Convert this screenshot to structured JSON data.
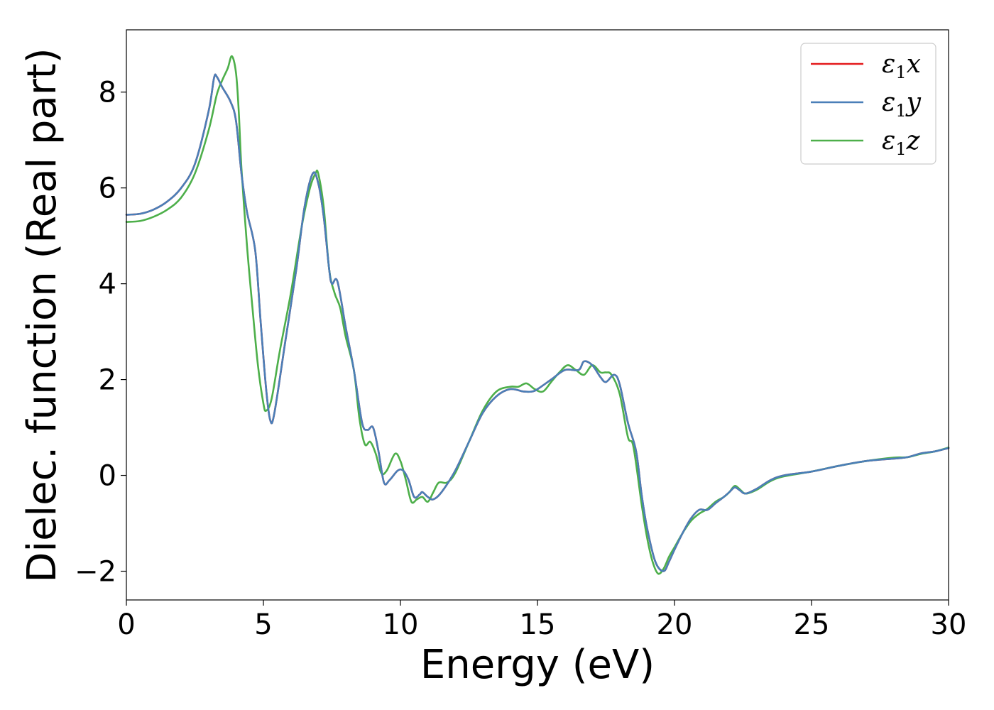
{
  "chart_data": {
    "type": "line",
    "xlabel": "Energy (eV)",
    "ylabel": "Dielec. function (Real part)",
    "xlim": [
      0,
      30
    ],
    "ylim": [
      -2.6,
      9.3
    ],
    "xticks": [
      0,
      5,
      10,
      15,
      20,
      25,
      30
    ],
    "xtick_labels": [
      "0",
      "5",
      "10",
      "15",
      "20",
      "25",
      "30"
    ],
    "yticks": [
      -2,
      0,
      2,
      4,
      6,
      8
    ],
    "ytick_labels": [
      "−2",
      "0",
      "2",
      "4",
      "6",
      "8"
    ],
    "grid": false,
    "legend_position": "top-right",
    "series": [
      {
        "name": "ε₁x",
        "legend_main": "ε",
        "legend_sub": "1",
        "legend_var": "x",
        "color": "#e41a1c",
        "points": [
          [
            0,
            5.44
          ],
          [
            0.5,
            5.46
          ],
          [
            1.0,
            5.55
          ],
          [
            1.5,
            5.72
          ],
          [
            2.0,
            6.0
          ],
          [
            2.5,
            6.5
          ],
          [
            3.0,
            7.6
          ],
          [
            3.2,
            8.3
          ],
          [
            3.3,
            8.32
          ],
          [
            3.5,
            8.1
          ],
          [
            3.8,
            7.8
          ],
          [
            4.0,
            7.4
          ],
          [
            4.2,
            6.3
          ],
          [
            4.4,
            5.5
          ],
          [
            4.7,
            4.7
          ],
          [
            4.9,
            3.2
          ],
          [
            5.1,
            1.8
          ],
          [
            5.25,
            1.15
          ],
          [
            5.4,
            1.3
          ],
          [
            5.8,
            2.8
          ],
          [
            6.2,
            4.3
          ],
          [
            6.5,
            5.6
          ],
          [
            6.8,
            6.3
          ],
          [
            7.0,
            6.1
          ],
          [
            7.2,
            5.4
          ],
          [
            7.4,
            4.3
          ],
          [
            7.5,
            4.0
          ],
          [
            7.7,
            4.05
          ],
          [
            8.0,
            3.1
          ],
          [
            8.3,
            2.2
          ],
          [
            8.6,
            1.1
          ],
          [
            8.8,
            0.95
          ],
          [
            9.0,
            1.0
          ],
          [
            9.2,
            0.5
          ],
          [
            9.4,
            -0.15
          ],
          [
            9.6,
            -0.1
          ],
          [
            9.9,
            0.1
          ],
          [
            10.1,
            0.1
          ],
          [
            10.3,
            -0.1
          ],
          [
            10.5,
            -0.45
          ],
          [
            10.7,
            -0.4
          ],
          [
            10.8,
            -0.35
          ],
          [
            11.0,
            -0.45
          ],
          [
            11.2,
            -0.5
          ],
          [
            11.5,
            -0.35
          ],
          [
            12.0,
            0.1
          ],
          [
            12.5,
            0.7
          ],
          [
            13.0,
            1.3
          ],
          [
            13.5,
            1.65
          ],
          [
            14.0,
            1.8
          ],
          [
            14.5,
            1.75
          ],
          [
            14.8,
            1.75
          ],
          [
            15.0,
            1.8
          ],
          [
            15.5,
            2.0
          ],
          [
            16.0,
            2.2
          ],
          [
            16.5,
            2.2
          ],
          [
            16.7,
            2.38
          ],
          [
            17.0,
            2.3
          ],
          [
            17.3,
            2.05
          ],
          [
            17.5,
            1.95
          ],
          [
            17.8,
            2.1
          ],
          [
            18.0,
            1.9
          ],
          [
            18.3,
            1.1
          ],
          [
            18.6,
            0.5
          ],
          [
            18.8,
            -0.4
          ],
          [
            19.0,
            -1.1
          ],
          [
            19.3,
            -1.8
          ],
          [
            19.6,
            -2.0
          ],
          [
            19.8,
            -1.8
          ],
          [
            20.0,
            -1.55
          ],
          [
            20.3,
            -1.2
          ],
          [
            20.6,
            -0.9
          ],
          [
            20.9,
            -0.72
          ],
          [
            21.2,
            -0.72
          ],
          [
            21.5,
            -0.58
          ],
          [
            21.8,
            -0.45
          ],
          [
            22.0,
            -0.35
          ],
          [
            22.2,
            -0.25
          ],
          [
            22.4,
            -0.32
          ],
          [
            22.6,
            -0.38
          ],
          [
            23.0,
            -0.28
          ],
          [
            23.5,
            -0.1
          ],
          [
            24.0,
            0.0
          ],
          [
            25.0,
            0.08
          ],
          [
            26.0,
            0.2
          ],
          [
            27.0,
            0.3
          ],
          [
            28.0,
            0.35
          ],
          [
            28.5,
            0.38
          ],
          [
            29.0,
            0.46
          ],
          [
            29.5,
            0.5
          ],
          [
            30.0,
            0.57
          ]
        ]
      },
      {
        "name": "ε₁y",
        "legend_main": "ε",
        "legend_sub": "1",
        "legend_var": "y",
        "color": "#4a7fb8",
        "points": [
          [
            0,
            5.44
          ],
          [
            0.5,
            5.46
          ],
          [
            1.0,
            5.55
          ],
          [
            1.5,
            5.72
          ],
          [
            2.0,
            6.0
          ],
          [
            2.5,
            6.5
          ],
          [
            3.0,
            7.6
          ],
          [
            3.2,
            8.3
          ],
          [
            3.3,
            8.32
          ],
          [
            3.5,
            8.1
          ],
          [
            3.8,
            7.8
          ],
          [
            4.0,
            7.4
          ],
          [
            4.2,
            6.3
          ],
          [
            4.4,
            5.5
          ],
          [
            4.7,
            4.7
          ],
          [
            4.9,
            3.2
          ],
          [
            5.1,
            1.8
          ],
          [
            5.25,
            1.15
          ],
          [
            5.4,
            1.3
          ],
          [
            5.8,
            2.8
          ],
          [
            6.2,
            4.3
          ],
          [
            6.5,
            5.6
          ],
          [
            6.8,
            6.3
          ],
          [
            7.0,
            6.1
          ],
          [
            7.2,
            5.4
          ],
          [
            7.4,
            4.3
          ],
          [
            7.5,
            4.0
          ],
          [
            7.7,
            4.05
          ],
          [
            8.0,
            3.1
          ],
          [
            8.3,
            2.2
          ],
          [
            8.6,
            1.1
          ],
          [
            8.8,
            0.95
          ],
          [
            9.0,
            1.0
          ],
          [
            9.2,
            0.5
          ],
          [
            9.4,
            -0.15
          ],
          [
            9.6,
            -0.1
          ],
          [
            9.9,
            0.1
          ],
          [
            10.1,
            0.1
          ],
          [
            10.3,
            -0.1
          ],
          [
            10.5,
            -0.45
          ],
          [
            10.7,
            -0.4
          ],
          [
            10.8,
            -0.35
          ],
          [
            11.0,
            -0.45
          ],
          [
            11.2,
            -0.5
          ],
          [
            11.5,
            -0.35
          ],
          [
            12.0,
            0.1
          ],
          [
            12.5,
            0.7
          ],
          [
            13.0,
            1.3
          ],
          [
            13.5,
            1.65
          ],
          [
            14.0,
            1.8
          ],
          [
            14.5,
            1.75
          ],
          [
            14.8,
            1.75
          ],
          [
            15.0,
            1.8
          ],
          [
            15.5,
            2.0
          ],
          [
            16.0,
            2.2
          ],
          [
            16.5,
            2.2
          ],
          [
            16.7,
            2.38
          ],
          [
            17.0,
            2.3
          ],
          [
            17.3,
            2.05
          ],
          [
            17.5,
            1.95
          ],
          [
            17.8,
            2.1
          ],
          [
            18.0,
            1.9
          ],
          [
            18.3,
            1.1
          ],
          [
            18.6,
            0.5
          ],
          [
            18.8,
            -0.4
          ],
          [
            19.0,
            -1.1
          ],
          [
            19.3,
            -1.8
          ],
          [
            19.6,
            -2.0
          ],
          [
            19.8,
            -1.8
          ],
          [
            20.0,
            -1.55
          ],
          [
            20.3,
            -1.2
          ],
          [
            20.6,
            -0.9
          ],
          [
            20.9,
            -0.72
          ],
          [
            21.2,
            -0.72
          ],
          [
            21.5,
            -0.58
          ],
          [
            21.8,
            -0.45
          ],
          [
            22.0,
            -0.35
          ],
          [
            22.2,
            -0.25
          ],
          [
            22.4,
            -0.32
          ],
          [
            22.6,
            -0.38
          ],
          [
            23.0,
            -0.28
          ],
          [
            23.5,
            -0.1
          ],
          [
            24.0,
            0.0
          ],
          [
            25.0,
            0.08
          ],
          [
            26.0,
            0.2
          ],
          [
            27.0,
            0.3
          ],
          [
            28.0,
            0.35
          ],
          [
            28.5,
            0.38
          ],
          [
            29.0,
            0.46
          ],
          [
            29.5,
            0.5
          ],
          [
            30.0,
            0.57
          ]
        ]
      },
      {
        "name": "ε₁z",
        "legend_main": "ε",
        "legend_sub": "1",
        "legend_var": "z",
        "color": "#4daf4a",
        "points": [
          [
            0,
            5.29
          ],
          [
            0.5,
            5.31
          ],
          [
            1.0,
            5.4
          ],
          [
            1.5,
            5.55
          ],
          [
            2.0,
            5.8
          ],
          [
            2.5,
            6.3
          ],
          [
            3.0,
            7.2
          ],
          [
            3.3,
            7.95
          ],
          [
            3.5,
            8.25
          ],
          [
            3.7,
            8.5
          ],
          [
            3.85,
            8.75
          ],
          [
            4.0,
            8.4
          ],
          [
            4.1,
            7.6
          ],
          [
            4.2,
            6.4
          ],
          [
            4.4,
            4.8
          ],
          [
            4.6,
            3.5
          ],
          [
            4.8,
            2.3
          ],
          [
            5.0,
            1.5
          ],
          [
            5.1,
            1.35
          ],
          [
            5.3,
            1.6
          ],
          [
            5.6,
            2.6
          ],
          [
            6.0,
            3.8
          ],
          [
            6.4,
            5.2
          ],
          [
            6.7,
            6.0
          ],
          [
            6.9,
            6.3
          ],
          [
            7.0,
            6.3
          ],
          [
            7.2,
            5.6
          ],
          [
            7.4,
            4.3
          ],
          [
            7.6,
            3.8
          ],
          [
            7.8,
            3.5
          ],
          [
            8.0,
            2.9
          ],
          [
            8.3,
            2.2
          ],
          [
            8.5,
            1.2
          ],
          [
            8.7,
            0.65
          ],
          [
            8.9,
            0.7
          ],
          [
            9.1,
            0.45
          ],
          [
            9.3,
            0.05
          ],
          [
            9.5,
            0.1
          ],
          [
            9.8,
            0.45
          ],
          [
            10.0,
            0.3
          ],
          [
            10.2,
            -0.1
          ],
          [
            10.4,
            -0.55
          ],
          [
            10.6,
            -0.5
          ],
          [
            10.8,
            -0.45
          ],
          [
            11.0,
            -0.55
          ],
          [
            11.2,
            -0.35
          ],
          [
            11.4,
            -0.15
          ],
          [
            11.7,
            -0.15
          ],
          [
            12.0,
            0.05
          ],
          [
            12.5,
            0.7
          ],
          [
            13.0,
            1.35
          ],
          [
            13.5,
            1.75
          ],
          [
            14.0,
            1.85
          ],
          [
            14.3,
            1.85
          ],
          [
            14.6,
            1.92
          ],
          [
            14.9,
            1.8
          ],
          [
            15.2,
            1.75
          ],
          [
            15.5,
            1.95
          ],
          [
            15.8,
            2.15
          ],
          [
            16.1,
            2.3
          ],
          [
            16.4,
            2.2
          ],
          [
            16.7,
            2.1
          ],
          [
            17.0,
            2.3
          ],
          [
            17.3,
            2.15
          ],
          [
            17.5,
            2.15
          ],
          [
            17.7,
            2.1
          ],
          [
            18.0,
            1.7
          ],
          [
            18.3,
            0.8
          ],
          [
            18.5,
            0.6
          ],
          [
            18.8,
            -0.6
          ],
          [
            19.0,
            -1.3
          ],
          [
            19.2,
            -1.8
          ],
          [
            19.4,
            -2.05
          ],
          [
            19.6,
            -1.95
          ],
          [
            19.8,
            -1.7
          ],
          [
            20.0,
            -1.5
          ],
          [
            20.3,
            -1.2
          ],
          [
            20.6,
            -0.95
          ],
          [
            20.9,
            -0.8
          ],
          [
            21.2,
            -0.7
          ],
          [
            21.5,
            -0.55
          ],
          [
            21.8,
            -0.45
          ],
          [
            22.0,
            -0.35
          ],
          [
            22.2,
            -0.22
          ],
          [
            22.4,
            -0.3
          ],
          [
            22.6,
            -0.38
          ],
          [
            23.0,
            -0.3
          ],
          [
            23.5,
            -0.12
          ],
          [
            24.0,
            -0.02
          ],
          [
            25.0,
            0.08
          ],
          [
            26.0,
            0.2
          ],
          [
            27.0,
            0.3
          ],
          [
            28.0,
            0.37
          ],
          [
            28.5,
            0.38
          ],
          [
            29.0,
            0.45
          ],
          [
            29.5,
            0.5
          ],
          [
            30.0,
            0.58
          ]
        ]
      }
    ]
  }
}
